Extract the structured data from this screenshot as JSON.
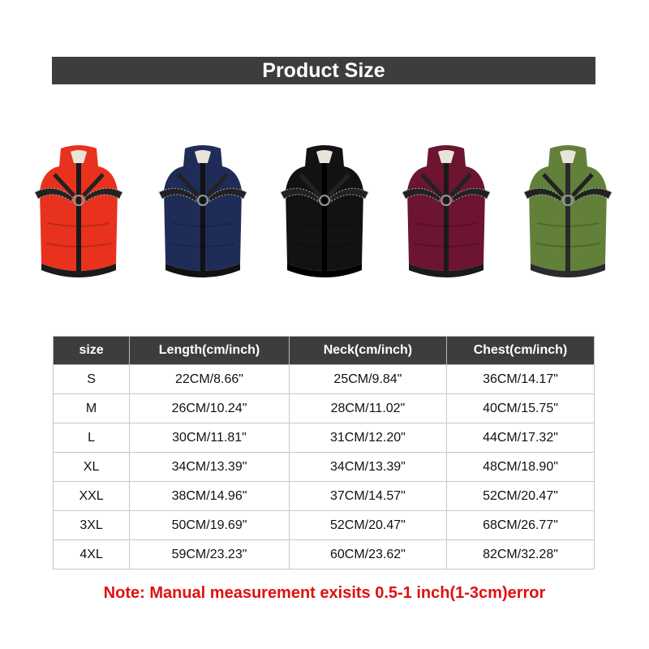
{
  "title": "Product Size",
  "vests": [
    {
      "color": "#e8321e",
      "trim": "#1a1a1a"
    },
    {
      "color": "#1f2c57",
      "trim": "#111111"
    },
    {
      "color": "#121212",
      "trim": "#000000"
    },
    {
      "color": "#6c1430",
      "trim": "#1a1a1a"
    },
    {
      "color": "#62803a",
      "trim": "#2a2a2a"
    }
  ],
  "table": {
    "headers": [
      "size",
      "Length(cm/inch)",
      "Neck(cm/inch)",
      "Chest(cm/inch)"
    ],
    "rows": [
      [
        "S",
        "22CM/8.66\"",
        "25CM/9.84\"",
        "36CM/14.17\""
      ],
      [
        "M",
        "26CM/10.24\"",
        "28CM/11.02\"",
        "40CM/15.75\""
      ],
      [
        "L",
        "30CM/11.81\"",
        "31CM/12.20\"",
        "44CM/17.32\""
      ],
      [
        "XL",
        "34CM/13.39\"",
        "34CM/13.39\"",
        "48CM/18.90\""
      ],
      [
        "XXL",
        "38CM/14.96\"",
        "37CM/14.57\"",
        "52CM/20.47\""
      ],
      [
        "3XL",
        "50CM/19.69\"",
        "52CM/20.47\"",
        "68CM/26.77\""
      ],
      [
        "4XL",
        "59CM/23.23\"",
        "60CM/23.62\"",
        "82CM/32.28\""
      ]
    ]
  },
  "note": "Note: Manual measurement exisits 0.5-1 inch(1-3cm)error"
}
